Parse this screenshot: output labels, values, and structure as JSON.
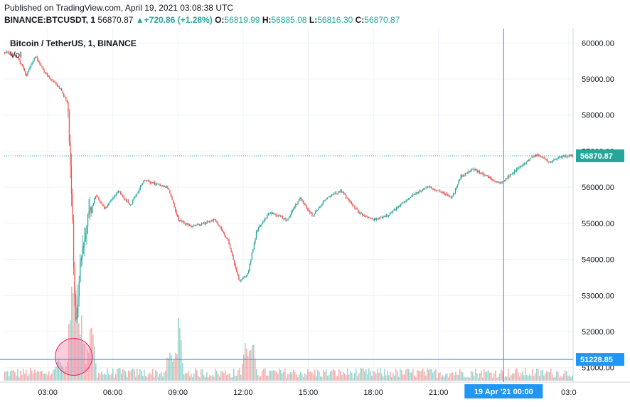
{
  "header": {
    "published": "Published on TradingView.com, April 19, 2021 03:08:38 UTC",
    "symbol": "BINANCE:BTCUSDT, 1",
    "price": "56870.87",
    "change": "▲+720.86 (+1.28%)",
    "o_label": "O:",
    "o_value": "56819.99",
    "h_label": "H:",
    "h_value": "56885.08",
    "l_label": "L:",
    "l_value": "56816.30",
    "c_label": "C:",
    "c_value": "56870.87"
  },
  "legend": {
    "title": "Bitcoin / TetherUS, 1, BINANCE",
    "volume": "Vol"
  },
  "colors": {
    "up": "#26a69a",
    "down": "#ef5350",
    "crosshair": "#2196f3",
    "grid": "#f0f3fa",
    "highlight": "#f48fb1"
  },
  "chart_data": {
    "type": "candlestick",
    "title": "Bitcoin / TetherUS, 1, BINANCE",
    "x_tick_labels": [
      "03:00",
      "06:00",
      "09:00",
      "12:00",
      "15:00",
      "18:00",
      "21:00",
      "19 Apr '21   00:00",
      "03:0"
    ],
    "y_tick_labels": [
      "60000.00",
      "59000.00",
      "58000.00",
      "57000.00",
      "56000.00",
      "55000.00",
      "54000.00",
      "53000.00",
      "52000.00",
      "51000.00"
    ],
    "ylim": [
      50600,
      60400
    ],
    "time_range_hours": [
      1.0,
      27.2
    ],
    "last_price_label": "56870.87",
    "last_price": 56870.87,
    "crosshair_price_label": "51228.85",
    "crosshair_price": 51228.85,
    "crosshair_time_label": "19 Apr '21   00:00",
    "crosshair_time_hours": 24.0,
    "price_path": [
      [
        1.0,
        59750
      ],
      [
        1.6,
        59600
      ],
      [
        2.0,
        59100
      ],
      [
        2.4,
        59650
      ],
      [
        2.8,
        59200
      ],
      [
        3.3,
        58900
      ],
      [
        3.6,
        58700
      ],
      [
        3.9,
        58300
      ],
      [
        4.0,
        57000
      ],
      [
        4.1,
        55500
      ],
      [
        4.2,
        53000
      ],
      [
        4.3,
        52200
      ],
      [
        4.5,
        54000
      ],
      [
        4.8,
        55000
      ],
      [
        5.2,
        55800
      ],
      [
        5.6,
        55400
      ],
      [
        6.2,
        55900
      ],
      [
        6.8,
        55500
      ],
      [
        7.4,
        56200
      ],
      [
        7.9,
        56100
      ],
      [
        8.5,
        56000
      ],
      [
        9.0,
        55100
      ],
      [
        9.6,
        54900
      ],
      [
        10.2,
        55000
      ],
      [
        10.7,
        55100
      ],
      [
        11.3,
        54500
      ],
      [
        11.8,
        53400
      ],
      [
        12.2,
        53600
      ],
      [
        12.6,
        54800
      ],
      [
        13.2,
        55300
      ],
      [
        14.0,
        55100
      ],
      [
        14.6,
        55700
      ],
      [
        15.2,
        55200
      ],
      [
        15.8,
        55700
      ],
      [
        16.5,
        55900
      ],
      [
        17.3,
        55300
      ],
      [
        18.0,
        55100
      ],
      [
        18.6,
        55200
      ],
      [
        19.2,
        55500
      ],
      [
        19.8,
        55800
      ],
      [
        20.5,
        56000
      ],
      [
        21.0,
        55900
      ],
      [
        21.6,
        55700
      ],
      [
        22.0,
        56300
      ],
      [
        22.6,
        56500
      ],
      [
        23.2,
        56300
      ],
      [
        23.8,
        56100
      ],
      [
        24.2,
        56300
      ],
      [
        24.8,
        56600
      ],
      [
        25.5,
        56900
      ],
      [
        26.1,
        56700
      ],
      [
        26.6,
        56850
      ],
      [
        27.2,
        56870
      ]
    ],
    "volume_spikes": [
      [
        4.05,
        0.85
      ],
      [
        4.2,
        1.0
      ],
      [
        4.35,
        0.7
      ],
      [
        4.6,
        0.55
      ],
      [
        5.0,
        0.4
      ],
      [
        3.5,
        0.35
      ],
      [
        9.0,
        0.9
      ],
      [
        8.6,
        0.45
      ],
      [
        12.1,
        0.55
      ],
      [
        12.4,
        0.5
      ]
    ],
    "highlight_time_hours": 4.2,
    "highlight_price": 51300,
    "grid": true
  }
}
